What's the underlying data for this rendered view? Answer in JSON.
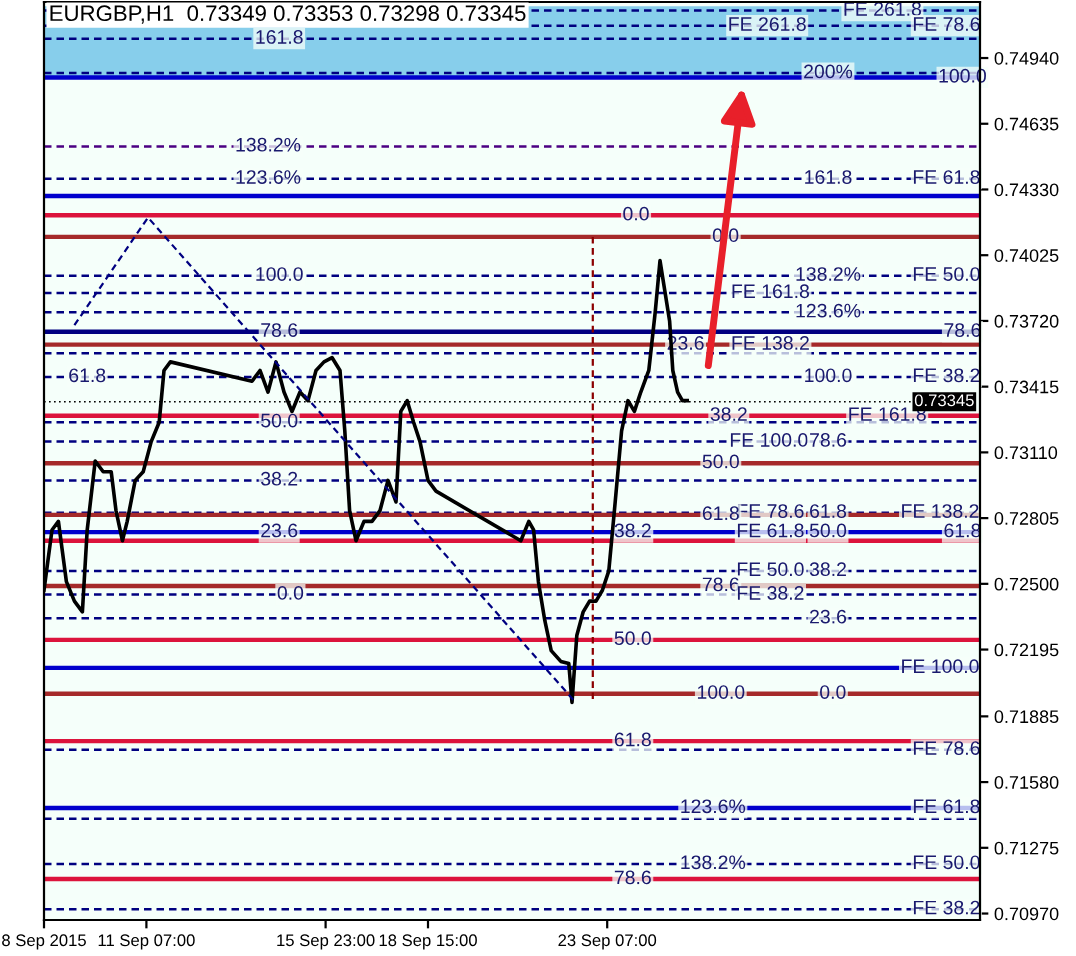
{
  "chart_data": {
    "type": "line",
    "title": "EURGBP,H1  0.73349 0.73353 0.73298 0.73345",
    "series": [
      {
        "color": "#000000",
        "line_style": "solid",
        "x": [
          "2015-09-08T15:00",
          "2015-09-08T20:00",
          "2015-09-09T00:00",
          "2015-09-09T05:00",
          "2015-09-09T10:00",
          "2015-09-09T15:00",
          "2015-09-09T18:00",
          "2015-09-09T23:00",
          "2015-09-10T04:00",
          "2015-09-10T09:00",
          "2015-09-10T12:00",
          "2015-09-10T16:00",
          "2015-09-10T19:00",
          "2015-09-11T00:00",
          "2015-09-11T05:00",
          "2015-09-11T10:00",
          "2015-09-11T15:00",
          "2015-09-11T18:00",
          "2015-09-11T22:00",
          "2015-09-14T01:00",
          "2015-09-14T06:00",
          "2015-09-14T11:00",
          "2015-09-14T16:00",
          "2015-09-14T21:00",
          "2015-09-15T02:00",
          "2015-09-15T07:00",
          "2015-09-15T12:00",
          "2015-09-15T17:00",
          "2015-09-15T22:00",
          "2015-09-16T03:00",
          "2015-09-16T08:00",
          "2015-09-16T11:00",
          "2015-09-16T14:00",
          "2015-09-16T18:00",
          "2015-09-16T23:00",
          "2015-09-17T04:00",
          "2015-09-17T09:00",
          "2015-09-17T14:00",
          "2015-09-17T19:00",
          "2015-09-17T22:00",
          "2015-09-18T02:00",
          "2015-09-18T06:00",
          "2015-09-18T10:00",
          "2015-09-18T15:00",
          "2015-09-18T20:00",
          "2015-09-21T01:00",
          "2015-09-21T06:00",
          "2015-09-21T09:00",
          "2015-09-21T12:00",
          "2015-09-21T16:00",
          "2015-09-21T20:00",
          "2015-09-22T02:00",
          "2015-09-22T07:00",
          "2015-09-22T09:00",
          "2015-09-22T12:00",
          "2015-09-22T16:00",
          "2015-09-22T20:00",
          "2015-09-23T00:00",
          "2015-09-23T04:00",
          "2015-09-23T08:00",
          "2015-09-23T12:00",
          "2015-09-23T16:00",
          "2015-09-23T20:00",
          "2015-09-24T00:00",
          "2015-09-24T04:00",
          "2015-09-24T09:00",
          "2015-09-24T13:00",
          "2015-09-24T16:00",
          "2015-09-24T19:00",
          "2015-09-24T22:00",
          "2015-09-25T00:00",
          "2015-09-25T03:00",
          "2015-09-25T06:00",
          "2015-09-25T09:00"
        ],
        "values": [
          0.7247,
          0.7275,
          0.7279,
          0.7251,
          0.7242,
          0.7237,
          0.7275,
          0.7307,
          0.7302,
          0.7302,
          0.7284,
          0.727,
          0.7279,
          0.7298,
          0.7302,
          0.7316,
          0.7325,
          0.7349,
          0.7353,
          0.7344,
          0.7349,
          0.7339,
          0.7353,
          0.7339,
          0.733,
          0.7339,
          0.7335,
          0.7349,
          0.7353,
          0.7355,
          0.7349,
          0.7321,
          0.7284,
          0.727,
          0.7279,
          0.7279,
          0.7284,
          0.7298,
          0.7288,
          0.733,
          0.7335,
          0.7325,
          0.7316,
          0.7298,
          0.7293,
          0.727,
          0.7279,
          0.7275,
          0.7251,
          0.7233,
          0.7219,
          0.7214,
          0.7213,
          0.7195,
          0.7226,
          0.7237,
          0.7242,
          0.7242,
          0.7247,
          0.7256,
          0.7288,
          0.7321,
          0.7335,
          0.733,
          0.7339,
          0.7349,
          0.7376,
          0.74,
          0.7386,
          0.7372,
          0.7349,
          0.7339,
          0.7335,
          0.7335
        ]
      },
      {
        "type": "line",
        "color": "#000080",
        "line_style": "dashed",
        "x": [
          "2015-09-09T10:00",
          "2015-09-11T08:00",
          "2015-09-22T10:00"
        ],
        "values": [
          0.737,
          0.742,
          0.7196
        ]
      },
      {
        "type": "line",
        "color": "#8b0000",
        "line_style": "dashed",
        "x": [
          "2015-09-22T22:00",
          "2015-09-22T22:00"
        ],
        "values": [
          0.7411,
          0.7196
        ]
      }
    ],
    "xlim": [
      "2015-09-08T15:00",
      "2015-10-03T00:00"
    ],
    "ylim": [
      0.7094,
      0.752
    ],
    "xticks": [
      {
        "value": "2015-09-08T15:00",
        "label": "8 Sep 2015"
      },
      {
        "value": "2015-09-11T07:00",
        "label": "11 Sep 07:00"
      },
      {
        "value": "2015-09-15T23:00",
        "label": "15 Sep 23:00"
      },
      {
        "value": "2015-09-18T15:00",
        "label": "18 Sep 15:00"
      },
      {
        "value": "2015-09-23T07:00",
        "label": "23 Sep 07:00"
      }
    ],
    "yticks": [
      {
        "value": 0.7097,
        "label": "0.70970"
      },
      {
        "value": 0.71275,
        "label": "0.71275"
      },
      {
        "value": 0.7158,
        "label": "0.71580"
      },
      {
        "value": 0.71885,
        "label": "0.71885"
      },
      {
        "value": 0.72195,
        "label": "0.72195"
      },
      {
        "value": 0.725,
        "label": "0.72500"
      },
      {
        "value": 0.72805,
        "label": "0.72805"
      },
      {
        "value": 0.7311,
        "label": "0.73110"
      },
      {
        "value": 0.73415,
        "label": "0.73415"
      },
      {
        "value": 0.7372,
        "label": "0.73720"
      },
      {
        "value": 0.74025,
        "label": "0.74025"
      },
      {
        "value": 0.7433,
        "label": "0.74330"
      },
      {
        "value": 0.74635,
        "label": "0.74635"
      },
      {
        "value": 0.7494,
        "label": "0.74940"
      }
    ],
    "grid": false,
    "legend": false,
    "bands": [
      {
        "axis": "y",
        "from": 0.7485,
        "to": 0.7518,
        "color": "#87ceeb"
      }
    ],
    "ref_lines": [
      {
        "axis": "y",
        "value": 0.7516,
        "color": "#000080",
        "line_style": "dashed"
      },
      {
        "axis": "y",
        "value": 0.7509,
        "color": "#000080",
        "line_style": "dashed"
      },
      {
        "axis": "y",
        "value": 0.7503,
        "color": "#000080",
        "line_style": "dashed"
      },
      {
        "axis": "y",
        "value": 0.7487,
        "color": "#000080",
        "line_style": "dashed"
      },
      {
        "axis": "y",
        "value": 0.7485,
        "color": "#0000cd",
        "line_style": "solid"
      },
      {
        "axis": "y",
        "value": 0.7453,
        "color": "#4b0082",
        "line_style": "dashed"
      },
      {
        "axis": "y",
        "value": 0.7438,
        "color": "#000080",
        "line_style": "dashed"
      },
      {
        "axis": "y",
        "value": 0.743,
        "color": "#0000cd",
        "line_style": "solid"
      },
      {
        "axis": "y",
        "value": 0.7421,
        "color": "#dc143c",
        "line_style": "solid"
      },
      {
        "axis": "y",
        "value": 0.7411,
        "color": "#a52a2a",
        "line_style": "solid"
      },
      {
        "axis": "y",
        "value": 0.7393,
        "color": "#000080",
        "line_style": "dashed"
      },
      {
        "axis": "y",
        "value": 0.7385,
        "color": "#000080",
        "line_style": "dashed"
      },
      {
        "axis": "y",
        "value": 0.7376,
        "color": "#000080",
        "line_style": "dashed"
      },
      {
        "axis": "y",
        "value": 0.7367,
        "color": "#000080",
        "line_style": "solid"
      },
      {
        "axis": "y",
        "value": 0.7361,
        "color": "#a52a2a",
        "line_style": "solid"
      },
      {
        "axis": "y",
        "value": 0.7357,
        "color": "#000080",
        "line_style": "dashed"
      },
      {
        "axis": "y",
        "value": 0.7346,
        "color": "#000080",
        "line_style": "dashed"
      },
      {
        "axis": "y",
        "value": 0.7328,
        "color": "#dc143c",
        "line_style": "solid"
      },
      {
        "axis": "y",
        "value": 0.7325,
        "color": "#000080",
        "line_style": "dashed"
      },
      {
        "axis": "y",
        "value": 0.7316,
        "color": "#000080",
        "line_style": "dashed"
      },
      {
        "axis": "y",
        "value": 0.7306,
        "color": "#a52a2a",
        "line_style": "solid"
      },
      {
        "axis": "y",
        "value": 0.7298,
        "color": "#000080",
        "line_style": "dashed"
      },
      {
        "axis": "y",
        "value": 0.7283,
        "color": "#000080",
        "line_style": "dashed"
      },
      {
        "axis": "y",
        "value": 0.7282,
        "color": "#a52a2a",
        "line_style": "solid"
      },
      {
        "axis": "y",
        "value": 0.7274,
        "color": "#0000cd",
        "line_style": "solid"
      },
      {
        "axis": "y",
        "value": 0.727,
        "color": "#dc143c",
        "line_style": "solid"
      },
      {
        "axis": "y",
        "value": 0.7256,
        "color": "#000080",
        "line_style": "dashed"
      },
      {
        "axis": "y",
        "value": 0.7249,
        "color": "#a52a2a",
        "line_style": "solid"
      },
      {
        "axis": "y",
        "value": 0.7245,
        "color": "#000080",
        "line_style": "dashed"
      },
      {
        "axis": "y",
        "value": 0.7234,
        "color": "#000080",
        "line_style": "dashed"
      },
      {
        "axis": "y",
        "value": 0.7224,
        "color": "#dc143c",
        "line_style": "solid"
      },
      {
        "axis": "y",
        "value": 0.7211,
        "color": "#0000cd",
        "line_style": "solid"
      },
      {
        "axis": "y",
        "value": 0.7199,
        "color": "#a52a2a",
        "line_style": "solid"
      },
      {
        "axis": "y",
        "value": 0.7177,
        "color": "#dc143c",
        "line_style": "solid"
      },
      {
        "axis": "y",
        "value": 0.7173,
        "color": "#000080",
        "line_style": "dashed"
      },
      {
        "axis": "y",
        "value": 0.7146,
        "color": "#0000cd",
        "line_style": "solid"
      },
      {
        "axis": "y",
        "value": 0.7141,
        "color": "#000080",
        "line_style": "dashed"
      },
      {
        "axis": "y",
        "value": 0.712,
        "color": "#000080",
        "line_style": "dashed"
      },
      {
        "axis": "y",
        "value": 0.7113,
        "color": "#dc143c",
        "line_style": "solid"
      },
      {
        "axis": "y",
        "value": 0.7099,
        "color": "#000080",
        "line_style": "dashed"
      },
      {
        "axis": "y",
        "value": 0.73345,
        "label": "0.73345",
        "color": "#000000",
        "line_style": "dotted"
      }
    ],
    "annotations": [
      {
        "text": "FE 261.8",
        "x": "2015-09-30T11:00",
        "y": 0.7516
      },
      {
        "text": "FE 78.6",
        "x": "2015-10-02T03:00",
        "y": 0.7509
      },
      {
        "text": "FE 261.8",
        "x": "2015-09-27T11:00",
        "y": 0.7509
      },
      {
        "text": "161.8",
        "x": "2015-09-14T18:00",
        "y": 0.7503
      },
      {
        "text": "200%",
        "x": "2015-09-29T01:00",
        "y": 0.7487
      },
      {
        "text": "100.0",
        "x": "2015-10-02T13:00",
        "y": 0.7485
      },
      {
        "text": "138.2%",
        "x": "2015-09-14T11:00",
        "y": 0.7453
      },
      {
        "text": "FE 61.8",
        "x": "2015-10-02T03:00",
        "y": 0.7438
      },
      {
        "text": "123.6%",
        "x": "2015-09-14T11:00",
        "y": 0.7438
      },
      {
        "text": "161.8",
        "x": "2015-09-29T01:00",
        "y": 0.7438
      },
      {
        "text": "0.0",
        "x": "2015-09-24T01:00",
        "y": 0.7421
      },
      {
        "text": "0.0",
        "x": "2015-09-26T09:00",
        "y": 0.7411
      },
      {
        "text": "100.0",
        "x": "2015-09-14T18:00",
        "y": 0.7393
      },
      {
        "text": "138.2%",
        "x": "2015-09-29T01:00",
        "y": 0.7393
      },
      {
        "text": "FE 50.0",
        "x": "2015-10-02T03:00",
        "y": 0.7393
      },
      {
        "text": "FE 161.8",
        "x": "2015-09-27T13:00",
        "y": 0.7385
      },
      {
        "text": "123.6%",
        "x": "2015-09-29T01:00",
        "y": 0.7376
      },
      {
        "text": "78.6",
        "x": "2015-10-02T13:00",
        "y": 0.7367
      },
      {
        "text": "78.6",
        "x": "2015-09-14T18:00",
        "y": 0.7367
      },
      {
        "text": "23.6",
        "x": "2015-09-25T08:00",
        "y": 0.7361
      },
      {
        "text": "FE 138.2",
        "x": "2015-09-27T13:00",
        "y": 0.7361
      },
      {
        "text": "FE 38.2",
        "x": "2015-10-02T03:00",
        "y": 0.7346
      },
      {
        "text": "61.8",
        "x": "2015-09-09T18:00",
        "y": 0.7346
      },
      {
        "text": "100.0",
        "x": "2015-09-29T01:00",
        "y": 0.7346
      },
      {
        "text": "38.2",
        "x": "2015-09-26T11:00",
        "y": 0.7328
      },
      {
        "text": "FE 161.8",
        "x": "2015-09-30T14:00",
        "y": 0.7328
      },
      {
        "text": "50.0",
        "x": "2015-09-14T18:00",
        "y": 0.7325
      },
      {
        "text": "FE 100.0",
        "x": "2015-09-27T12:00",
        "y": 0.7316
      },
      {
        "text": "78.6",
        "x": "2015-09-29T01:00",
        "y": 0.7316
      },
      {
        "text": "50.0",
        "x": "2015-09-26T06:00",
        "y": 0.7306
      },
      {
        "text": "38.2",
        "x": "2015-09-14T18:00",
        "y": 0.7298
      },
      {
        "text": "FE 78.6",
        "x": "2015-09-27T13:00",
        "y": 0.7283
      },
      {
        "text": "61.8",
        "x": "2015-09-29T01:00",
        "y": 0.7283
      },
      {
        "text": "FE 138.2",
        "x": "2015-10-01T23:00",
        "y": 0.7283
      },
      {
        "text": "61.8",
        "x": "2015-09-26T06:00",
        "y": 0.7282
      },
      {
        "text": "61.8",
        "x": "2015-10-02T13:00",
        "y": 0.7274
      },
      {
        "text": "23.6",
        "x": "2015-09-14T18:00",
        "y": 0.7274
      },
      {
        "text": "38.2",
        "x": "2015-09-23T23:00",
        "y": 0.7274
      },
      {
        "text": "FE 61.8",
        "x": "2015-09-27T13:00",
        "y": 0.7274
      },
      {
        "text": "50.0",
        "x": "2015-09-29T01:00",
        "y": 0.7274
      },
      {
        "text": "FE 50.0",
        "x": "2015-09-27T13:00",
        "y": 0.7256
      },
      {
        "text": "38.2",
        "x": "2015-09-29T01:00",
        "y": 0.7256
      },
      {
        "text": "78.6",
        "x": "2015-09-26T06:00",
        "y": 0.7249
      },
      {
        "text": "FE 38.2",
        "x": "2015-09-27T13:00",
        "y": 0.7245
      },
      {
        "text": "0.0",
        "x": "2015-09-15T01:00",
        "y": 0.7245
      },
      {
        "text": "23.6",
        "x": "2015-09-29T01:00",
        "y": 0.7234
      },
      {
        "text": "50.0",
        "x": "2015-09-23T23:00",
        "y": 0.7224
      },
      {
        "text": "FE 100.0",
        "x": "2015-10-01T23:00",
        "y": 0.7211
      },
      {
        "text": "100.0",
        "x": "2015-09-26T06:00",
        "y": 0.7199
      },
      {
        "text": "0.0",
        "x": "2015-09-29T04:00",
        "y": 0.7199
      },
      {
        "text": "61.8",
        "x": "2015-09-23T23:00",
        "y": 0.7177
      },
      {
        "text": "FE 78.6",
        "x": "2015-10-02T03:00",
        "y": 0.7173
      },
      {
        "text": "123.6%",
        "x": "2015-09-26T01:00",
        "y": 0.7146
      },
      {
        "text": "FE 61.8",
        "x": "2015-10-02T03:00",
        "y": 0.7146
      },
      {
        "text": "138.2%",
        "x": "2015-09-26T01:00",
        "y": 0.712
      },
      {
        "text": "FE 50.0",
        "x": "2015-10-02T03:00",
        "y": 0.712
      },
      {
        "text": "78.6",
        "x": "2015-09-23T23:00",
        "y": 0.7113
      },
      {
        "text": "FE 38.2",
        "x": "2015-10-02T03:00",
        "y": 0.7099
      }
    ]
  }
}
